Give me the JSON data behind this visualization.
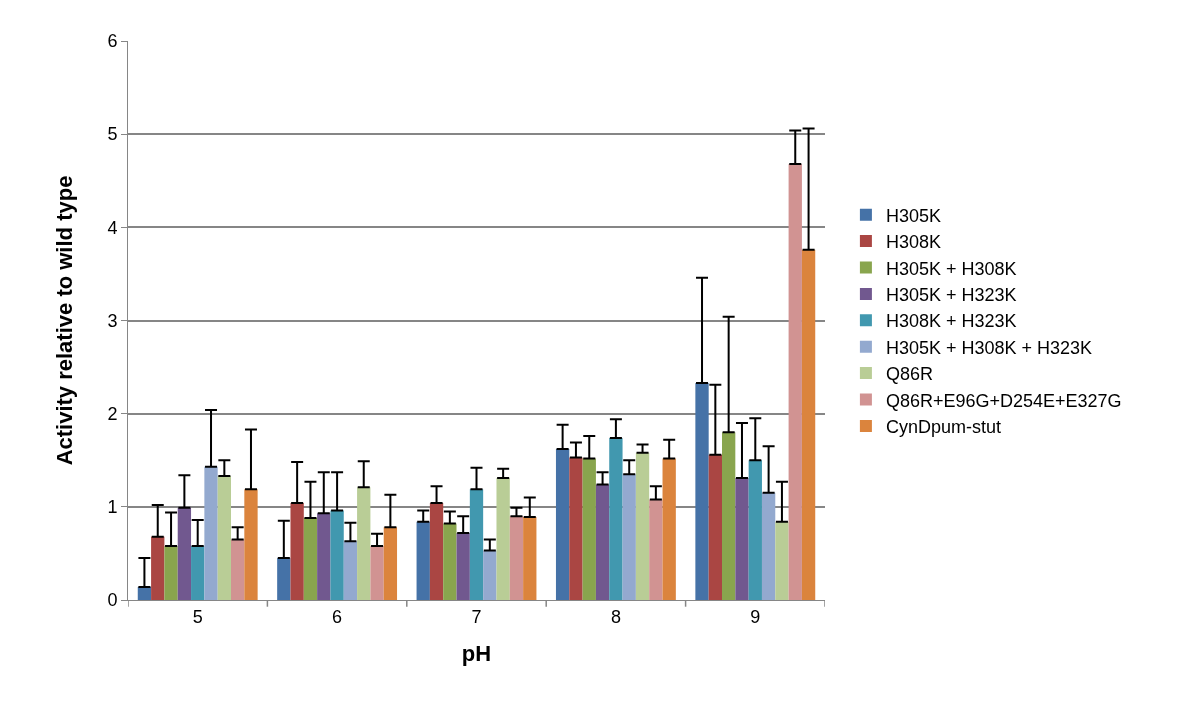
{
  "chart_data": {
    "type": "bar",
    "xlabel": "pH",
    "ylabel": "Activity relative to wild type",
    "categories": [
      "5",
      "6",
      "7",
      "8",
      "9"
    ],
    "series": [
      {
        "name": "H305K",
        "color": "#4572a7",
        "values": [
          0.14,
          0.45,
          0.84,
          1.62,
          2.33
        ],
        "errors": [
          [
            0.14,
            0.45
          ],
          [
            0.45,
            0.85
          ],
          [
            0.84,
            0.96
          ],
          [
            1.62,
            1.88
          ],
          [
            2.33,
            3.46
          ]
        ]
      },
      {
        "name": "H308K",
        "color": "#aa4643",
        "values": [
          0.68,
          1.04,
          1.04,
          1.53,
          1.56
        ],
        "errors": [
          [
            0.68,
            1.02
          ],
          [
            1.04,
            1.48
          ],
          [
            1.04,
            1.22
          ],
          [
            1.53,
            1.69
          ],
          [
            1.56,
            2.31
          ]
        ]
      },
      {
        "name": "H305K + H308K",
        "color": "#89a54e",
        "values": [
          0.58,
          0.88,
          0.82,
          1.52,
          1.8
        ],
        "errors": [
          [
            0.58,
            0.94
          ],
          [
            0.88,
            1.27
          ],
          [
            0.82,
            0.95
          ],
          [
            1.52,
            1.76
          ],
          [
            1.8,
            3.04
          ]
        ]
      },
      {
        "name": "H305K + H323K",
        "color": "#71588f",
        "values": [
          0.99,
          0.93,
          0.72,
          1.24,
          1.31
        ],
        "errors": [
          [
            0.99,
            1.34
          ],
          [
            0.93,
            1.37
          ],
          [
            0.72,
            0.9
          ],
          [
            1.24,
            1.37
          ],
          [
            1.31,
            1.9
          ]
        ]
      },
      {
        "name": "H308K + H323K",
        "color": "#4198af",
        "values": [
          0.58,
          0.96,
          1.19,
          1.74,
          1.5
        ],
        "errors": [
          [
            0.58,
            0.86
          ],
          [
            0.96,
            1.37
          ],
          [
            1.19,
            1.42
          ],
          [
            1.74,
            1.94
          ],
          [
            1.5,
            1.95
          ]
        ]
      },
      {
        "name": "H305K + H308K + H323K",
        "color": "#93a9cf",
        "values": [
          1.43,
          0.63,
          0.53,
          1.35,
          1.15
        ],
        "errors": [
          [
            1.43,
            2.04
          ],
          [
            0.63,
            0.83
          ],
          [
            0.53,
            0.65
          ],
          [
            1.35,
            1.5
          ],
          [
            1.15,
            1.65
          ]
        ]
      },
      {
        "name": "Q86R",
        "color": "#b9cd96",
        "values": [
          1.33,
          1.21,
          1.31,
          1.58,
          0.84
        ],
        "errors": [
          [
            1.33,
            1.5
          ],
          [
            1.21,
            1.49
          ],
          [
            1.31,
            1.41
          ],
          [
            1.58,
            1.67
          ],
          [
            0.84,
            1.27
          ]
        ]
      },
      {
        "name": "Q86R+E96G+D254E+E327G",
        "color": "#d19392",
        "values": [
          0.65,
          0.58,
          0.9,
          1.08,
          4.68
        ],
        "errors": [
          [
            0.65,
            0.78
          ],
          [
            0.58,
            0.71
          ],
          [
            0.9,
            0.99
          ],
          [
            1.08,
            1.22
          ],
          [
            4.68,
            5.04
          ]
        ]
      },
      {
        "name": "CynDpum-stut",
        "color": "#db843d",
        "values": [
          1.19,
          0.78,
          0.89,
          1.52,
          3.76
        ],
        "errors": [
          [
            1.19,
            1.83
          ],
          [
            0.78,
            1.13
          ],
          [
            0.89,
            1.1
          ],
          [
            1.52,
            1.72
          ],
          [
            3.76,
            5.06
          ]
        ]
      }
    ],
    "ylim": [
      0,
      6
    ],
    "yticks": [
      0,
      1,
      2,
      3,
      4,
      5,
      6
    ],
    "grid": "y",
    "legend": "right"
  }
}
